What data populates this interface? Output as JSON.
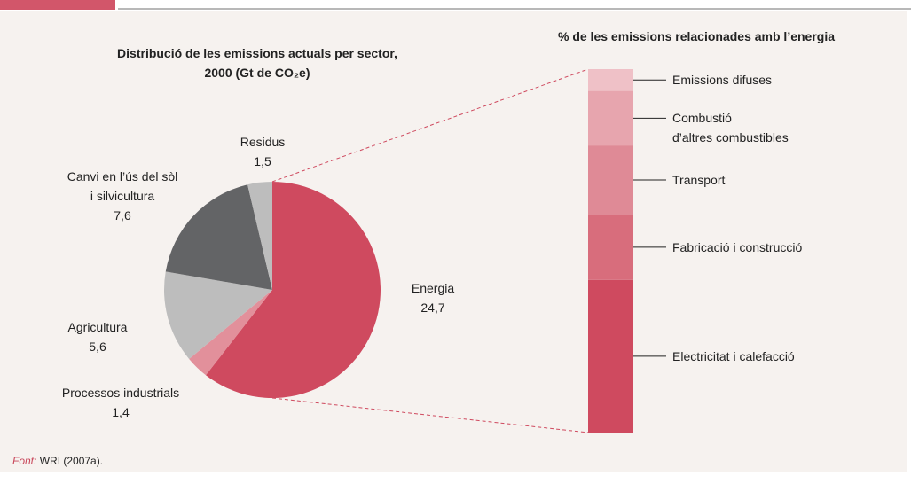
{
  "chart_data": [
    {
      "type": "pie",
      "title": "Distribució de les emissions actuals per sector,\n2000 (Gt de CO₂e)",
      "categories": [
        "Energia",
        "Processos industrials",
        "Agricultura",
        "Canvi en l’ús del sòl\ni silvicultura",
        "Residus"
      ],
      "values": [
        24.7,
        1.4,
        5.6,
        7.6,
        1.5
      ],
      "value_labels": [
        "24,7",
        "1,4",
        "5,6",
        "7,6",
        "1,5"
      ],
      "colors": [
        "#cf4a5f",
        "#e2909b",
        "#bdbdbd",
        "#636466",
        "#bdbdbd"
      ]
    },
    {
      "type": "stacked_bar",
      "title": "% de les emissions relacionades amb l’energia",
      "categories": [
        null
      ],
      "ylim": [
        0,
        100
      ],
      "series": [
        {
          "name": "Electricitat i calefacció",
          "color": "#cf4a5f",
          "values": [
            42
          ]
        },
        {
          "name": "Fabricació i construcció",
          "color": "#d86d7c",
          "values": [
            18
          ]
        },
        {
          "name": "Transport",
          "color": "#df8a96",
          "values": [
            19
          ]
        },
        {
          "name": "Combustió\nd’altres combustibles",
          "color": "#e7a5ae",
          "values": [
            15
          ]
        },
        {
          "name": "Emissions difuses",
          "color": "#efc1c7",
          "values": [
            6
          ]
        }
      ]
    }
  ],
  "source": {
    "label": "Font:",
    "text": "WRI (2007a)."
  }
}
